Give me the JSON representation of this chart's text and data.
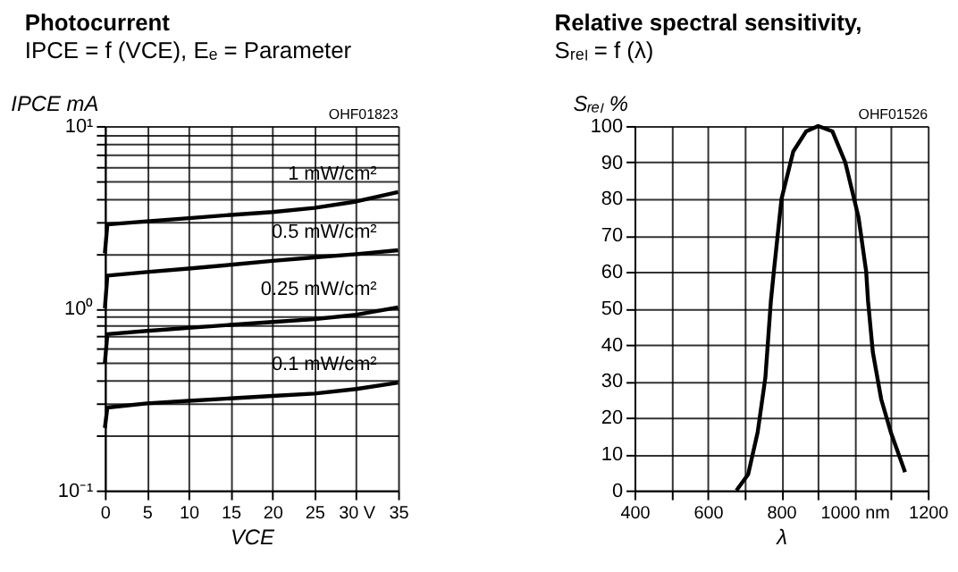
{
  "chart_data": [
    {
      "type": "line",
      "title": "Photocurrent",
      "subtitle": "IPCE = f (VCE), Eₑ = Parameter",
      "xlabel": "VCE",
      "ylabel": "IPCE mA",
      "log": "y",
      "grid": true,
      "legend": false,
      "marker": "none",
      "line_style": "solid",
      "xlim": [
        0,
        35
      ],
      "xticks": [
        0,
        5,
        10,
        15,
        20,
        25,
        {
          "value": 30,
          "label": "30 V"
        },
        35
      ],
      "ylim": [
        0.1,
        10
      ],
      "yticks": [
        {
          "value": 0.1,
          "label": "10⁻¹"
        },
        {
          "value": 0.2,
          "label": null
        },
        {
          "value": 0.3,
          "label": null
        },
        {
          "value": 0.4,
          "label": null
        },
        {
          "value": 0.5,
          "label": null
        },
        {
          "value": 0.6,
          "label": null
        },
        {
          "value": 0.7,
          "label": null
        },
        {
          "value": 0.8,
          "label": null
        },
        {
          "value": 0.9,
          "label": null
        },
        {
          "value": 1,
          "label": "10⁰"
        },
        {
          "value": 2,
          "label": null
        },
        {
          "value": 3,
          "label": null
        },
        {
          "value": 4,
          "label": null
        },
        {
          "value": 5,
          "label": null
        },
        {
          "value": 6,
          "label": null
        },
        {
          "value": 7,
          "label": null
        },
        {
          "value": 8,
          "label": null
        },
        {
          "value": 9,
          "label": null
        },
        {
          "value": 10,
          "label": "10¹"
        }
      ],
      "x": [
        0,
        0.3,
        5,
        10,
        15,
        20,
        25,
        30,
        35
      ],
      "series": [
        {
          "name": "1 mW/cm²",
          "color": "#000000",
          "values": [
            2.0,
            2.88,
            3.0,
            3.12,
            3.25,
            3.37,
            3.55,
            3.85,
            4.34
          ]
        },
        {
          "name": "0.5 mW/cm²",
          "color": "#000000",
          "values": [
            1.0,
            1.51,
            1.58,
            1.65,
            1.73,
            1.82,
            1.9,
            1.98,
            2.08
          ]
        },
        {
          "name": "0.25 mW/cm²",
          "color": "#000000",
          "values": [
            0.5,
            0.72,
            0.75,
            0.78,
            0.81,
            0.84,
            0.87,
            0.92,
            1.01
          ]
        },
        {
          "name": "0.1 mW/cm²",
          "color": "#000000",
          "values": [
            0.22,
            0.285,
            0.3,
            0.31,
            0.32,
            0.33,
            0.34,
            0.36,
            0.39
          ]
        }
      ],
      "annotations": [
        "OHF01823"
      ]
    },
    {
      "type": "line",
      "title": "Relative spectral sensitivity,",
      "subtitle": "Sᵣₑₗ = f (λ)",
      "xlabel": "λ",
      "ylabel": "Sᵣₑₗ %",
      "grid": true,
      "legend": false,
      "marker": "none",
      "line_style": "solid",
      "xlim": [
        400,
        1200
      ],
      "xticks": [
        400,
        {
          "value": 500,
          "label": null
        },
        600,
        {
          "value": 700,
          "label": null
        },
        800,
        {
          "value": 900,
          "label": null
        },
        {
          "value": 1000,
          "label": "1000 nm"
        },
        {
          "value": 1100,
          "label": null
        },
        1200
      ],
      "ylim": [
        0,
        100
      ],
      "yticks": [
        0,
        10,
        20,
        30,
        40,
        50,
        60,
        70,
        80,
        90,
        100
      ],
      "series": [
        {
          "color": "#000000",
          "x": [
            678,
            710,
            736,
            757,
            772,
            780,
            801,
            833,
            868,
            901,
            940,
            975,
            1011,
            1032,
            1037,
            1050,
            1073,
            1099,
            1138
          ],
          "values": [
            0,
            4.4,
            16,
            31,
            52,
            60,
            80,
            93,
            98.5,
            100,
            98.5,
            90,
            75,
            60,
            52,
            38,
            25,
            16,
            5
          ]
        }
      ],
      "annotations": [
        "OHF01526"
      ]
    }
  ]
}
